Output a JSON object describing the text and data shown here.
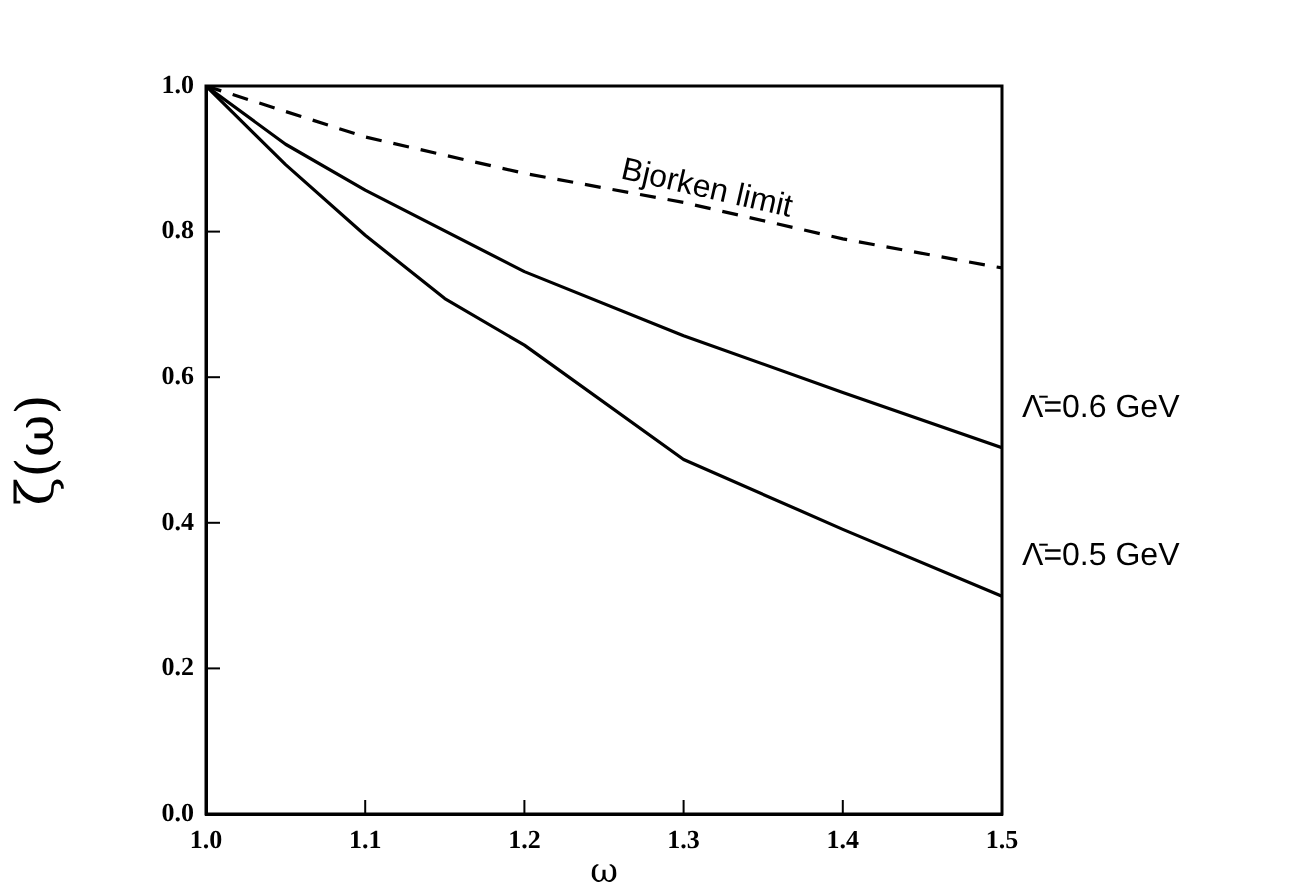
{
  "chart_data": {
    "type": "line",
    "xlabel": "ω",
    "ylabel": "ζ(ω)",
    "x": [
      1.0,
      1.05,
      1.1,
      1.15,
      1.2,
      1.3,
      1.4,
      1.5
    ],
    "series": [
      {
        "name": "Bjorken limit",
        "color": "#000000",
        "line_style": "dashed",
        "x": [
          1.0,
          1.1,
          1.2,
          1.3,
          1.4,
          1.5
        ],
        "values": [
          1.0,
          0.93,
          0.88,
          0.84,
          0.79,
          0.75
        ]
      },
      {
        "name": "Λ̄=0.6 GeV",
        "color": "#000000",
        "line_style": "solid",
        "x": [
          1.0,
          1.05,
          1.1,
          1.2,
          1.3,
          1.4,
          1.5
        ],
        "values": [
          1.0,
          0.92,
          0.857,
          0.745,
          0.657,
          0.579,
          0.503
        ]
      },
      {
        "name": "Λ̄=0.5 GeV",
        "color": "#000000",
        "line_style": "solid",
        "values": [
          1.0,
          0.892,
          0.795,
          0.708,
          0.644,
          0.487,
          0.391,
          0.299
        ]
      }
    ],
    "xlim": [
      1.0,
      1.5
    ],
    "xticks": [
      {
        "value": 1.0,
        "label": "1.0"
      },
      1.1,
      1.2,
      1.3,
      1.4,
      {
        "value": 1.5,
        "label": "1.5"
      }
    ],
    "ylim": [
      0,
      1
    ],
    "yticks": [
      {
        "value": 0,
        "label": "0.0"
      },
      0.2,
      0.4,
      0.6,
      0.8,
      {
        "value": 1,
        "label": "1.0"
      }
    ],
    "grid": false,
    "legend": false,
    "marker": "none"
  }
}
